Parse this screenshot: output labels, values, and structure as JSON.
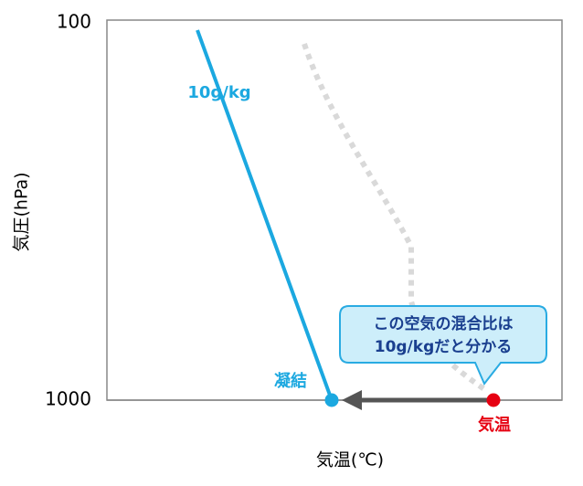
{
  "axes": {
    "y_label": "気圧(hPa)",
    "x_label": "気温(℃)",
    "y_ticks": [
      "100",
      "1000"
    ]
  },
  "labels": {
    "mixing_ratio": "10g/kg",
    "condensation": "凝結",
    "temperature": "気温"
  },
  "callout": {
    "lines": [
      "この空気の混合比は",
      "10g/kgだと分かる"
    ]
  }
}
